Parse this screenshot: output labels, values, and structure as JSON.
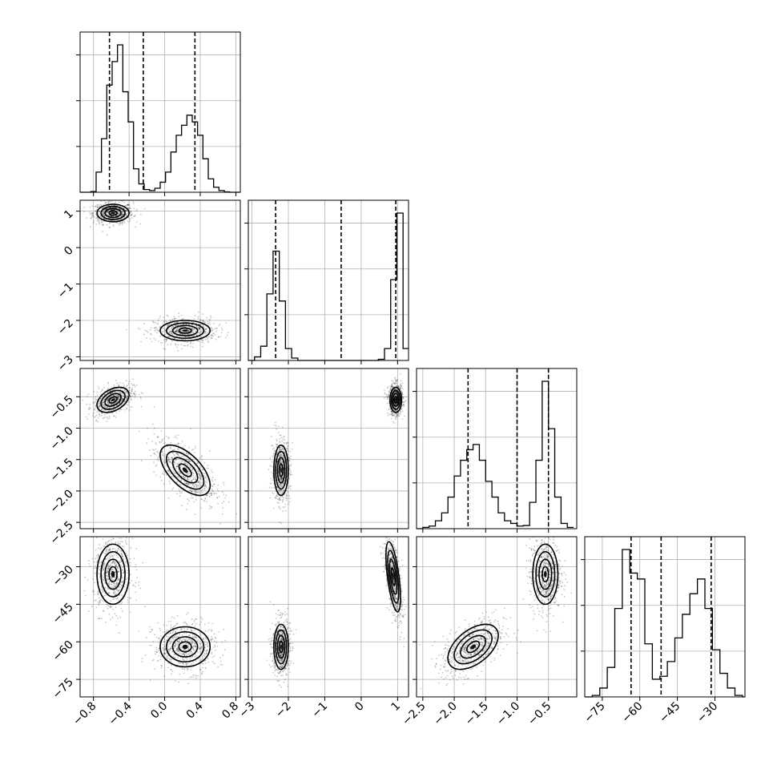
{
  "chart_data": {
    "type": "corner",
    "title": "",
    "grid": true,
    "parameters": [
      {
        "index": 0,
        "range": [
          -0.95,
          0.85
        ],
        "ticks": [
          -0.8,
          -0.4,
          0.0,
          0.4,
          0.8
        ],
        "tick_labels": [
          "−0.8",
          "−0.4",
          "0.0",
          "0.4",
          "0.8"
        ],
        "quantiles": [
          -0.62,
          -0.24,
          0.34
        ],
        "histogram": {
          "edges": [
            -0.95,
            -0.89,
            -0.83,
            -0.77,
            -0.71,
            -0.65,
            -0.59,
            -0.53,
            -0.47,
            -0.41,
            -0.35,
            -0.29,
            -0.23,
            -0.17,
            -0.11,
            -0.05,
            0.01,
            0.07,
            0.13,
            0.19,
            0.25,
            0.31,
            0.37,
            0.43,
            0.49,
            0.55,
            0.61,
            0.67,
            0.73,
            0.79,
            0.85
          ],
          "counts": [
            0,
            0,
            2,
            60,
            160,
            320,
            390,
            440,
            300,
            210,
            70,
            25,
            8,
            5,
            12,
            30,
            60,
            120,
            170,
            200,
            230,
            210,
            170,
            100,
            40,
            15,
            5,
            1,
            0,
            0
          ]
        }
      },
      {
        "index": 1,
        "range": [
          -3.1,
          1.3
        ],
        "ticks": [
          -3,
          -2,
          -1,
          0,
          1
        ],
        "tick_labels": [
          "−3",
          "−2",
          "−1",
          "0",
          "1"
        ],
        "quantiles": [
          -2.35,
          -0.55,
          0.95
        ],
        "histogram": {
          "edges": [
            -3.1,
            -2.93,
            -2.76,
            -2.59,
            -2.42,
            -2.25,
            -2.08,
            -1.91,
            -1.74,
            -1.57,
            -1.4,
            -1.23,
            -1.06,
            -0.89,
            -0.72,
            -0.55,
            -0.38,
            -0.21,
            -0.04,
            0.13,
            0.3,
            0.47,
            0.64,
            0.81,
            0.98,
            1.15,
            1.3
          ],
          "counts": [
            0,
            15,
            60,
            280,
            460,
            250,
            50,
            10,
            0,
            0,
            0,
            0,
            0,
            0,
            0,
            0,
            0,
            0,
            0,
            0,
            0,
            5,
            50,
            340,
            620,
            50
          ]
        }
      },
      {
        "index": 2,
        "range": [
          -2.6,
          -0.05
        ],
        "ticks": [
          -2.5,
          -2.0,
          -1.5,
          -1.0,
          -0.5
        ],
        "tick_labels": [
          "−2.5",
          "−2.0",
          "−1.5",
          "−1.0",
          "−0.5"
        ],
        "quantiles": [
          -1.78,
          -1.0,
          -0.5
        ],
        "histogram": {
          "edges": [
            -2.6,
            -2.5,
            -2.4,
            -2.3,
            -2.2,
            -2.1,
            -2.0,
            -1.9,
            -1.8,
            -1.7,
            -1.6,
            -1.5,
            -1.4,
            -1.3,
            -1.2,
            -1.1,
            -1.0,
            -0.9,
            -0.8,
            -0.7,
            -0.6,
            -0.5,
            -0.4,
            -0.3,
            -0.2,
            -0.1
          ],
          "counts": [
            0,
            5,
            10,
            30,
            60,
            120,
            200,
            260,
            300,
            320,
            260,
            180,
            120,
            60,
            30,
            20,
            10,
            12,
            100,
            260,
            560,
            380,
            120,
            20,
            5
          ]
        }
      },
      {
        "index": 3,
        "range": [
          -82,
          -18
        ],
        "ticks": [
          -75,
          -60,
          -45,
          -30
        ],
        "tick_labels": [
          "−75",
          "−60",
          "−45",
          "−30"
        ],
        "quantiles": [
          -63.5,
          -51.5,
          -31.5
        ],
        "histogram": {
          "edges": [
            -82,
            -79,
            -76,
            -73,
            -70,
            -67,
            -64,
            -61,
            -58,
            -55,
            -52,
            -49,
            -46,
            -43,
            -40,
            -37,
            -34,
            -31,
            -28,
            -25,
            -22,
            -19,
            -18
          ],
          "counts": [
            0,
            5,
            30,
            100,
            300,
            500,
            420,
            400,
            180,
            60,
            70,
            120,
            200,
            280,
            350,
            400,
            300,
            160,
            80,
            30,
            5,
            0
          ]
        }
      }
    ],
    "pairs": [
      {
        "x": 0,
        "y": 1,
        "modes": [
          {
            "cx": -0.58,
            "cy": 0.95,
            "sx": 0.09,
            "sy": 0.12,
            "rho": 0.0,
            "w": 1
          },
          {
            "cx": 0.23,
            "cy": -2.28,
            "sx": 0.14,
            "sy": 0.14,
            "rho": 0.0,
            "w": 1
          }
        ]
      },
      {
        "x": 0,
        "y": 2,
        "modes": [
          {
            "cx": -0.58,
            "cy": -0.55,
            "sx": 0.09,
            "sy": 0.1,
            "rho": 0.4,
            "w": 1
          },
          {
            "cx": 0.23,
            "cy": -1.67,
            "sx": 0.14,
            "sy": 0.2,
            "rho": -0.6,
            "w": 1
          }
        ]
      },
      {
        "x": 0,
        "y": 3,
        "modes": [
          {
            "cx": -0.58,
            "cy": -33,
            "sx": 0.09,
            "sy": 6,
            "rho": 0.0,
            "w": 1
          },
          {
            "cx": 0.23,
            "cy": -62,
            "sx": 0.14,
            "sy": 4,
            "rho": 0.0,
            "w": 1
          }
        ]
      },
      {
        "x": 1,
        "y": 2,
        "modes": [
          {
            "cx": -2.2,
            "cy": -1.67,
            "sx": 0.1,
            "sy": 0.2,
            "rho": 0.0,
            "w": 1
          },
          {
            "cx": 0.95,
            "cy": -0.55,
            "sx": 0.08,
            "sy": 0.1,
            "rho": 0.0,
            "w": 1
          }
        ]
      },
      {
        "x": 1,
        "y": 3,
        "modes": [
          {
            "cx": -2.2,
            "cy": -62,
            "sx": 0.1,
            "sy": 4.5,
            "rho": 0.0,
            "w": 1
          },
          {
            "cx": 0.88,
            "cy": -34,
            "sx": 0.1,
            "sy": 7,
            "rho": -0.6,
            "w": 1
          }
        ]
      },
      {
        "x": 2,
        "y": 3,
        "modes": [
          {
            "cx": -1.7,
            "cy": -62,
            "sx": 0.2,
            "sy": 4.5,
            "rho": 0.5,
            "w": 1
          },
          {
            "cx": -0.55,
            "cy": -33,
            "sx": 0.1,
            "sy": 6,
            "rho": 0.0,
            "w": 1
          }
        ]
      }
    ]
  }
}
